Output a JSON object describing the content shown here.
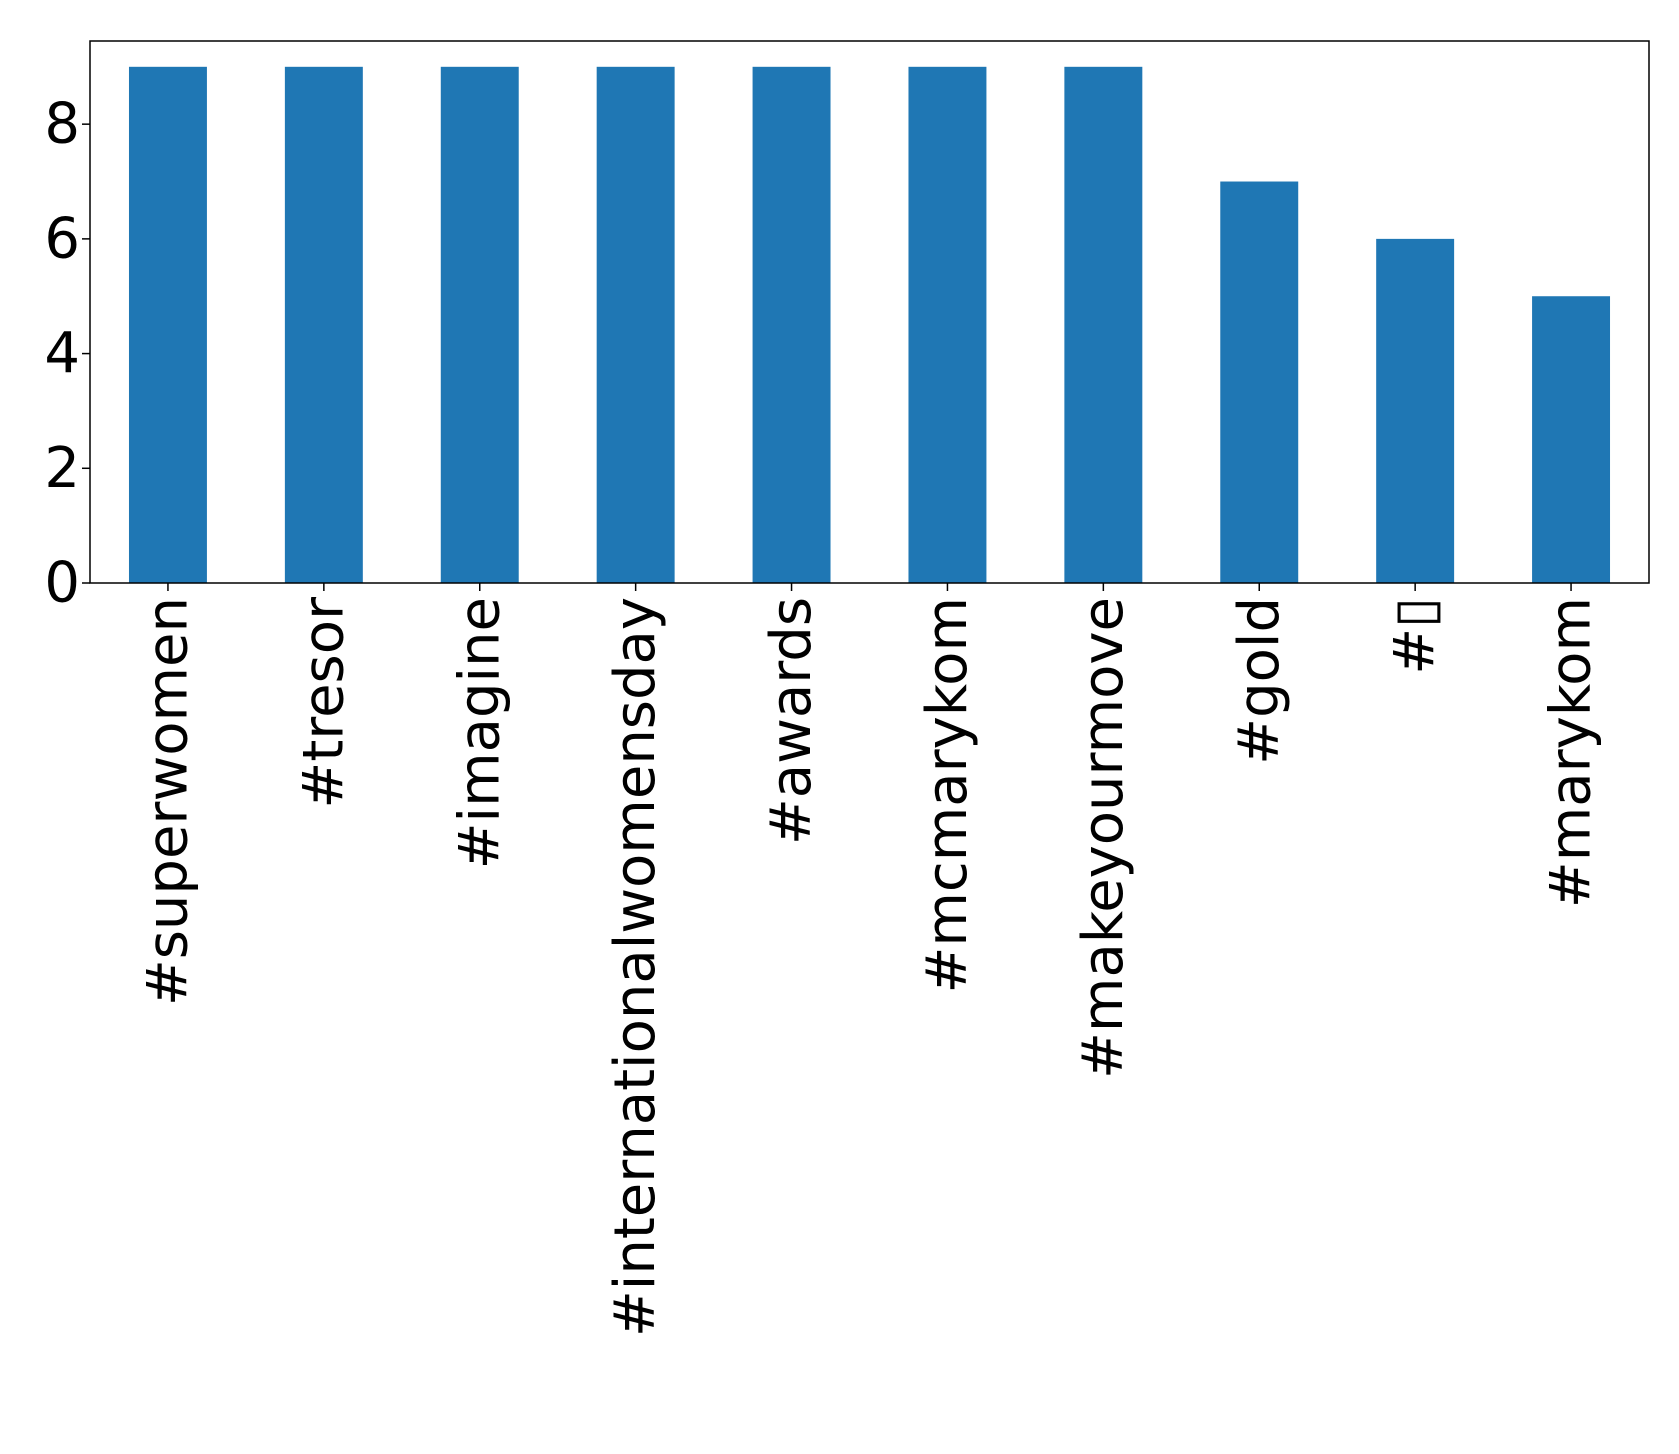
{
  "chart_data": {
    "type": "bar",
    "categories": [
      "#superwomen",
      "#tresor",
      "#imagine",
      "#internationalwomensday",
      "#awards",
      "#mcmarykom",
      "#makeyourmove",
      "#gold",
      "#▯",
      "#marykom"
    ],
    "values": [
      9,
      9,
      9,
      9,
      9,
      9,
      9,
      7,
      6,
      5
    ],
    "title": "",
    "xlabel": "",
    "ylabel": "",
    "ylim": [
      0,
      9.45
    ],
    "yticks": [
      0,
      2,
      4,
      6,
      8
    ],
    "grid": false,
    "bar_color": "#1f77b4"
  }
}
